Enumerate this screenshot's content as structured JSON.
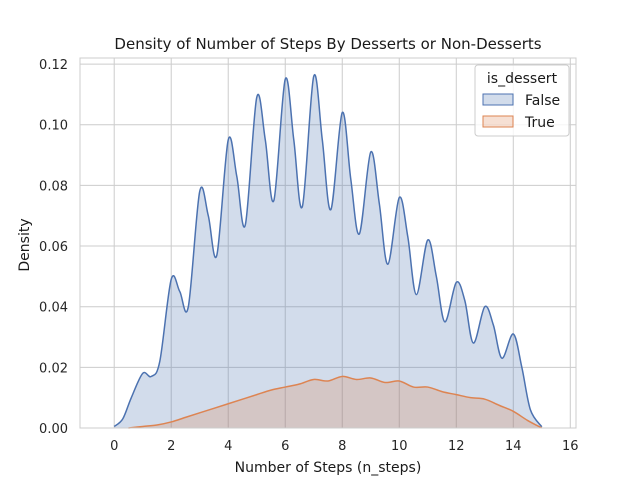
{
  "chart_data": {
    "type": "area",
    "title": "Density of Number of Steps By Desserts or Non-Desserts",
    "xlabel": "Number of Steps (n_steps)",
    "ylabel": "Density",
    "xlim": [
      -1.2,
      16.2
    ],
    "ylim": [
      0,
      0.122
    ],
    "xticks": [
      0,
      2,
      4,
      6,
      8,
      10,
      12,
      14,
      16
    ],
    "yticks": [
      0.0,
      0.02,
      0.04,
      0.06,
      0.08,
      0.1,
      0.12
    ],
    "ytick_labels": [
      "0.00",
      "0.02",
      "0.04",
      "0.06",
      "0.08",
      "0.10",
      "0.12"
    ],
    "grid": true,
    "legend": {
      "title": "is_dessert",
      "placement": "top-right",
      "entries": [
        "False",
        "True"
      ]
    },
    "series": [
      {
        "name": "False",
        "line_color": "#4c72b0",
        "fill_color": "#4c72b0",
        "x": [
          0,
          0.3,
          0.6,
          1.0,
          1.3,
          1.6,
          2.0,
          2.3,
          2.6,
          3.0,
          3.3,
          3.6,
          4.0,
          4.3,
          4.6,
          5.0,
          5.3,
          5.6,
          6.0,
          6.3,
          6.6,
          7.0,
          7.3,
          7.6,
          8.0,
          8.3,
          8.6,
          9.0,
          9.3,
          9.6,
          10.0,
          10.3,
          10.6,
          11.0,
          11.3,
          11.6,
          12.0,
          12.3,
          12.6,
          13.0,
          13.3,
          13.6,
          14.0,
          14.3,
          14.6,
          15.0
        ],
        "y": [
          0.0005,
          0.003,
          0.01,
          0.018,
          0.017,
          0.022,
          0.049,
          0.045,
          0.04,
          0.078,
          0.07,
          0.057,
          0.095,
          0.083,
          0.067,
          0.109,
          0.095,
          0.075,
          0.115,
          0.095,
          0.073,
          0.116,
          0.095,
          0.072,
          0.104,
          0.082,
          0.064,
          0.091,
          0.074,
          0.054,
          0.076,
          0.063,
          0.044,
          0.062,
          0.05,
          0.035,
          0.048,
          0.042,
          0.028,
          0.04,
          0.034,
          0.023,
          0.031,
          0.02,
          0.006,
          0.0004
        ]
      },
      {
        "name": "True",
        "line_color": "#dd8452",
        "fill_color": "#dd8452",
        "x": [
          0.5,
          1.0,
          1.5,
          2.0,
          2.5,
          3.0,
          3.5,
          4.0,
          4.5,
          5.0,
          5.5,
          6.0,
          6.5,
          7.0,
          7.5,
          8.0,
          8.5,
          9.0,
          9.5,
          10.0,
          10.5,
          11.0,
          11.5,
          12.0,
          12.5,
          13.0,
          13.5,
          14.0,
          14.5,
          15.0
        ],
        "y": [
          0.0,
          0.0005,
          0.001,
          0.002,
          0.0035,
          0.005,
          0.0065,
          0.008,
          0.0095,
          0.011,
          0.0125,
          0.0135,
          0.0145,
          0.016,
          0.0155,
          0.017,
          0.016,
          0.0165,
          0.015,
          0.0155,
          0.0135,
          0.0135,
          0.012,
          0.011,
          0.01,
          0.0095,
          0.0075,
          0.0055,
          0.0025,
          0.0
        ]
      }
    ]
  }
}
